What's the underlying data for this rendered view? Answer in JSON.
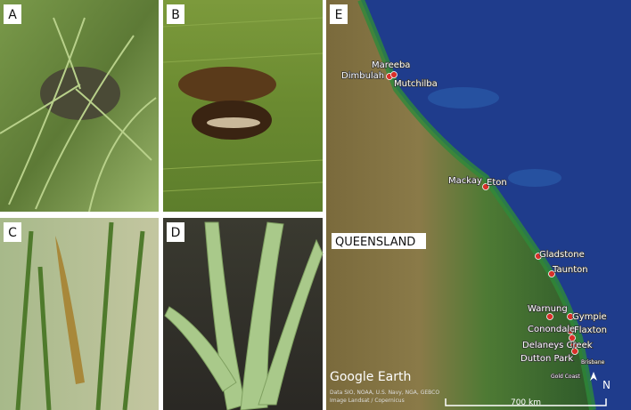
{
  "panels": [
    {
      "label": "A"
    },
    {
      "label": "B"
    },
    {
      "label": "C"
    },
    {
      "label": "D"
    },
    {
      "label": "E"
    }
  ],
  "map": {
    "region": "QUEENSLAND",
    "places": [
      "Mareeba",
      "Dimbulah",
      "Mutchilba",
      "Mackay",
      "Eton",
      "Gladstone",
      "Taunton",
      "Warnung",
      "Gympie",
      "Conondale",
      "Flaxton",
      "Delaneys Creek",
      "Dutton Park",
      "Brisbane",
      "Gold Coast"
    ],
    "brand": "Google Earth",
    "attribution": [
      "Data SIO, NOAA, U.S. Navy, NGA, GEBCO",
      "Image Landsat / Copernicus"
    ],
    "scale": "700 km",
    "north": "N"
  }
}
